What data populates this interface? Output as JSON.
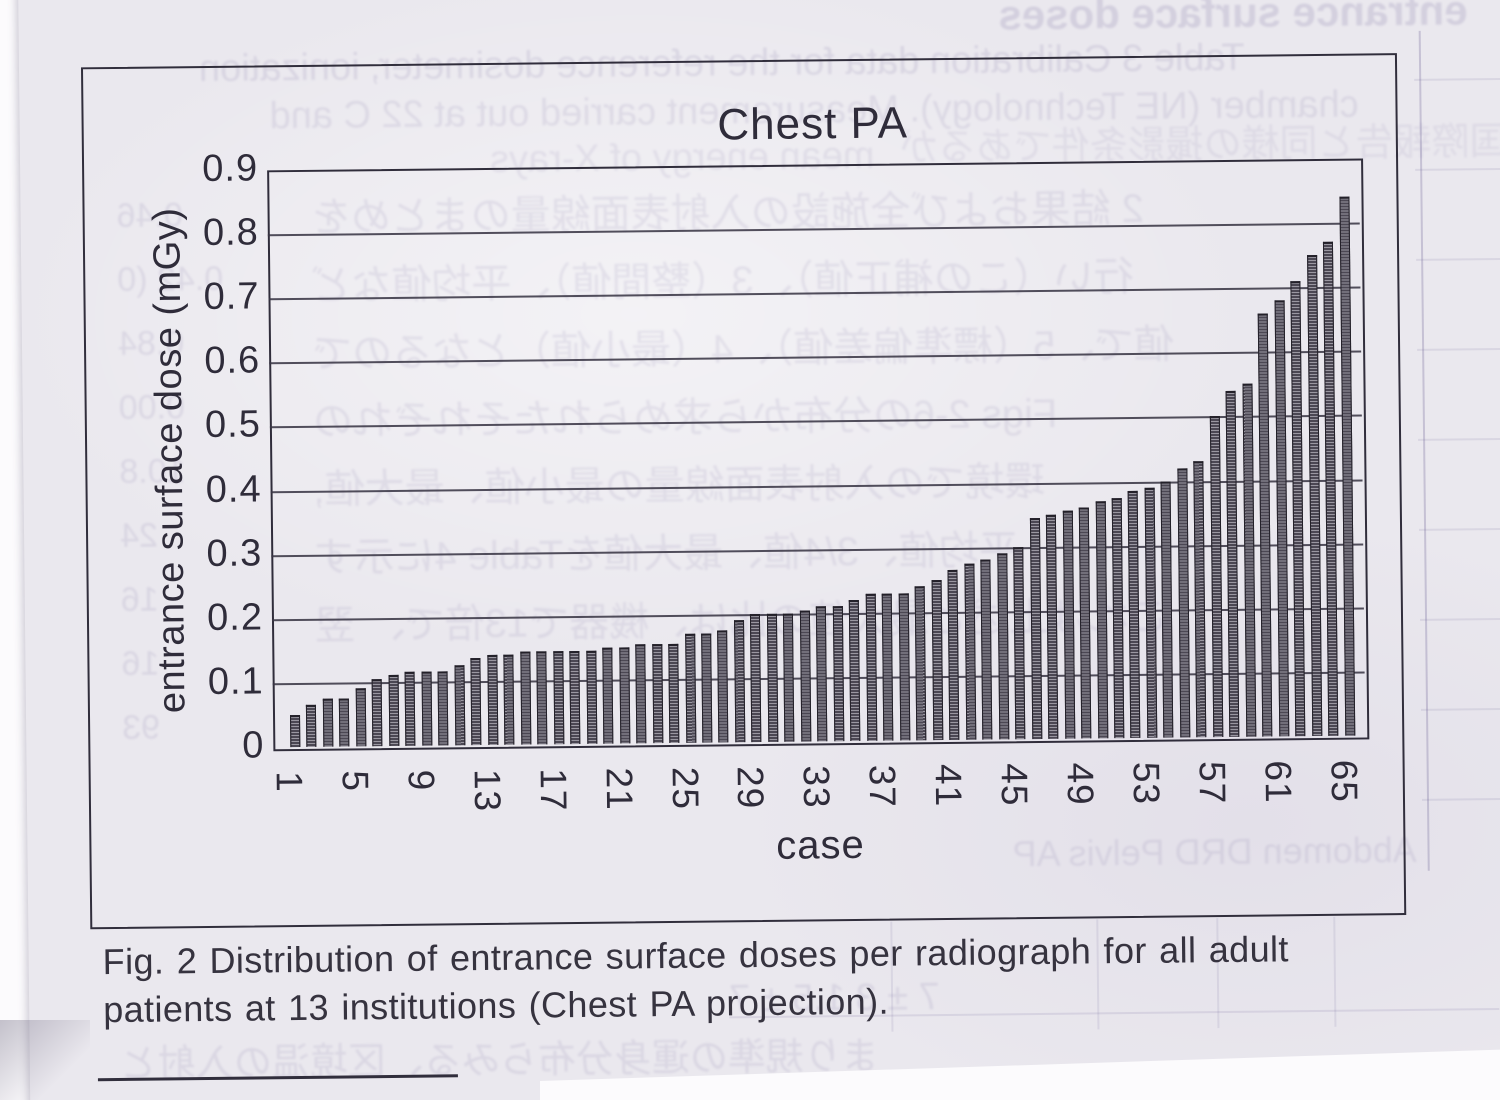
{
  "figure": {
    "caption_line1": "Fig. 2   Distribution of entrance surface doses per radiograph for all adult",
    "caption_line2": "patients at 13 institutions (Chest PA projection)."
  },
  "chart_data": {
    "type": "bar",
    "title": "Chest PA",
    "xlabel": "case",
    "ylabel": "entrance surface dose (mGy)",
    "ylim": [
      0,
      0.9
    ],
    "yticks": [
      0,
      0.1,
      0.2,
      0.3,
      0.4,
      0.5,
      0.6,
      0.7,
      0.8,
      0.9
    ],
    "xticks": [
      1,
      5,
      9,
      13,
      17,
      21,
      25,
      29,
      33,
      37,
      41,
      45,
      49,
      53,
      57,
      61,
      65
    ],
    "grid": "horizontal",
    "legend": "none",
    "bar_color": "#4b4753",
    "categories": [
      1,
      2,
      3,
      4,
      5,
      6,
      7,
      8,
      9,
      10,
      11,
      12,
      13,
      14,
      15,
      16,
      17,
      18,
      19,
      20,
      21,
      22,
      23,
      24,
      25,
      26,
      27,
      28,
      29,
      30,
      31,
      32,
      33,
      34,
      35,
      36,
      37,
      38,
      39,
      40,
      41,
      42,
      43,
      44,
      45,
      46,
      47,
      48,
      49,
      50,
      51,
      52,
      53,
      54,
      55,
      56,
      57,
      58,
      59,
      60,
      61,
      62,
      63,
      64,
      65
    ],
    "values": [
      0.05,
      0.065,
      0.075,
      0.075,
      0.09,
      0.105,
      0.11,
      0.115,
      0.115,
      0.115,
      0.125,
      0.135,
      0.14,
      0.14,
      0.145,
      0.145,
      0.145,
      0.145,
      0.145,
      0.15,
      0.15,
      0.155,
      0.155,
      0.155,
      0.17,
      0.17,
      0.175,
      0.19,
      0.2,
      0.2,
      0.2,
      0.205,
      0.21,
      0.21,
      0.22,
      0.23,
      0.23,
      0.23,
      0.24,
      0.25,
      0.265,
      0.275,
      0.28,
      0.29,
      0.3,
      0.345,
      0.35,
      0.355,
      0.36,
      0.37,
      0.375,
      0.385,
      0.39,
      0.4,
      0.42,
      0.43,
      0.5,
      0.54,
      0.55,
      0.66,
      0.68,
      0.71,
      0.75,
      0.77,
      0.84
    ]
  },
  "bleed": {
    "top_right": "entrance surface doses",
    "top_lines": [
      "Table 3  Calibration data for the reference dosimeter, ionization",
      "chamber (NE Technology). Measurement carried out at 22 C and",
      "mean energy of X-rays"
    ],
    "title_side": "国際報告と同様の撮影条件であるが",
    "plot_rows": [
      "2 結果および全施設の入射表面線量のまとめを",
      "行い（この補正値）、3（整間値）、平均値など",
      "値で、5（標準偏差値）、4（最小値）となるので",
      "Figs 2-6の分布から求められたそれぞれの",
      "環境での入射表面線量の最小値、最大値,",
      "平均値、3/4値、最大値をTable 4に示す",
      "これは上述と最大値の比は、機器で13倍で、 翌"
    ],
    "left_numbers": [
      "0.46",
      "0.42 (0",
      "0.84",
      "0.00",
      "10.8",
      "24",
      "16",
      "16",
      "93"
    ],
    "bottom_row_1": "Abdomen      DRD      Pelvis AP",
    "bottom_row_2": "7 ± 3      1.5 ± 7",
    "bottom_row_3": "まり規準の運身分布らみる、区境温の入射と"
  }
}
